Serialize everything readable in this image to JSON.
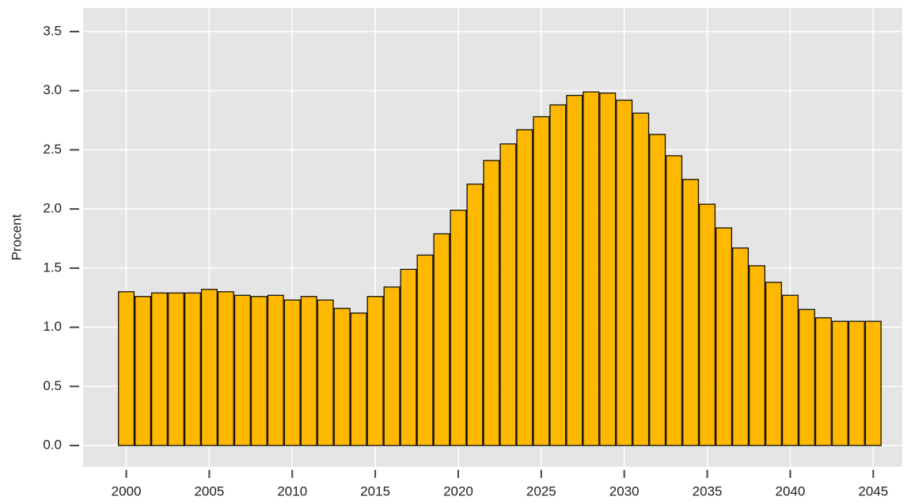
{
  "chart_data": {
    "type": "bar",
    "y_label": "Procent",
    "x": [
      2000,
      2001,
      2002,
      2003,
      2004,
      2005,
      2006,
      2007,
      2008,
      2009,
      2010,
      2011,
      2012,
      2013,
      2014,
      2015,
      2016,
      2017,
      2018,
      2019,
      2020,
      2021,
      2022,
      2023,
      2024,
      2025,
      2026,
      2027,
      2028,
      2029,
      2030,
      2031,
      2032,
      2033,
      2034,
      2035,
      2036,
      2037,
      2038,
      2039,
      2040,
      2041,
      2042,
      2043,
      2044,
      2045
    ],
    "values": [
      1.3,
      1.26,
      1.29,
      1.29,
      1.29,
      1.32,
      1.3,
      1.27,
      1.26,
      1.27,
      1.23,
      1.26,
      1.23,
      1.16,
      1.12,
      1.26,
      1.34,
      1.49,
      1.61,
      1.79,
      1.99,
      2.21,
      2.41,
      2.55,
      2.67,
      2.78,
      2.88,
      2.96,
      2.99,
      2.98,
      2.92,
      2.81,
      2.63,
      2.45,
      2.25,
      2.04,
      1.84,
      1.67,
      1.52,
      1.38,
      1.27,
      1.15,
      1.08,
      1.05,
      1.05,
      1.05
    ],
    "color": "#ffb800",
    "xlim": [
      1997.4,
      2046.75
    ],
    "xticks": [
      2000,
      2005,
      2010,
      2015,
      2020,
      2025,
      2030,
      2035,
      2040,
      2045
    ],
    "ylim": [
      -0.18,
      3.7
    ],
    "yticks": [
      {
        "value": 0,
        "label": "0.0"
      },
      0.5,
      {
        "value": 1,
        "label": "1.0"
      },
      1.5,
      {
        "value": 2,
        "label": "2.0"
      },
      2.5,
      {
        "value": 3,
        "label": "3.0"
      },
      3.5
    ],
    "grid": true
  }
}
